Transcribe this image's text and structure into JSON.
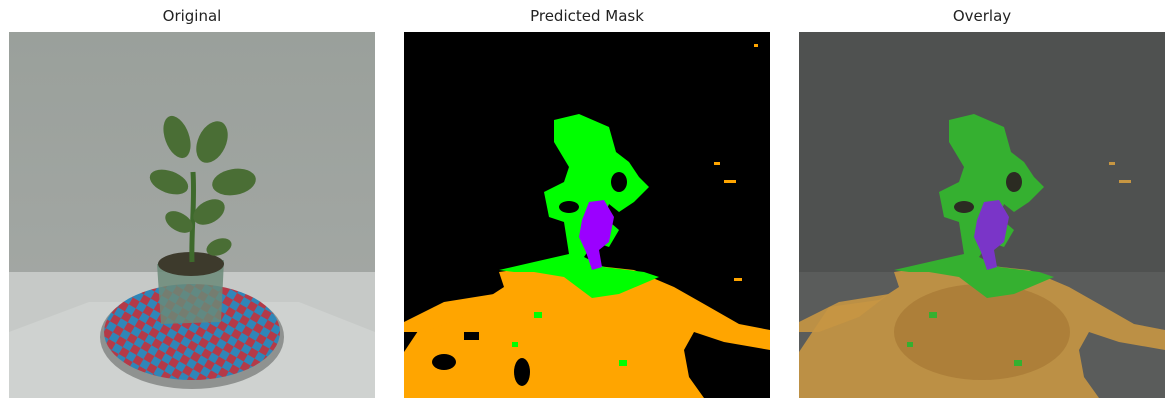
{
  "panels": [
    {
      "title": "Original",
      "image": "plant-photo"
    },
    {
      "title": "Predicted Mask",
      "image": "segmentation-mask"
    },
    {
      "title": "Overlay",
      "image": "mask-overlay-photo"
    }
  ],
  "colors": {
    "background_class": "#000000",
    "leaf_class": "#00ff00",
    "stem_class": "#9b00ff",
    "pot_mat_class": "#ffa500"
  }
}
